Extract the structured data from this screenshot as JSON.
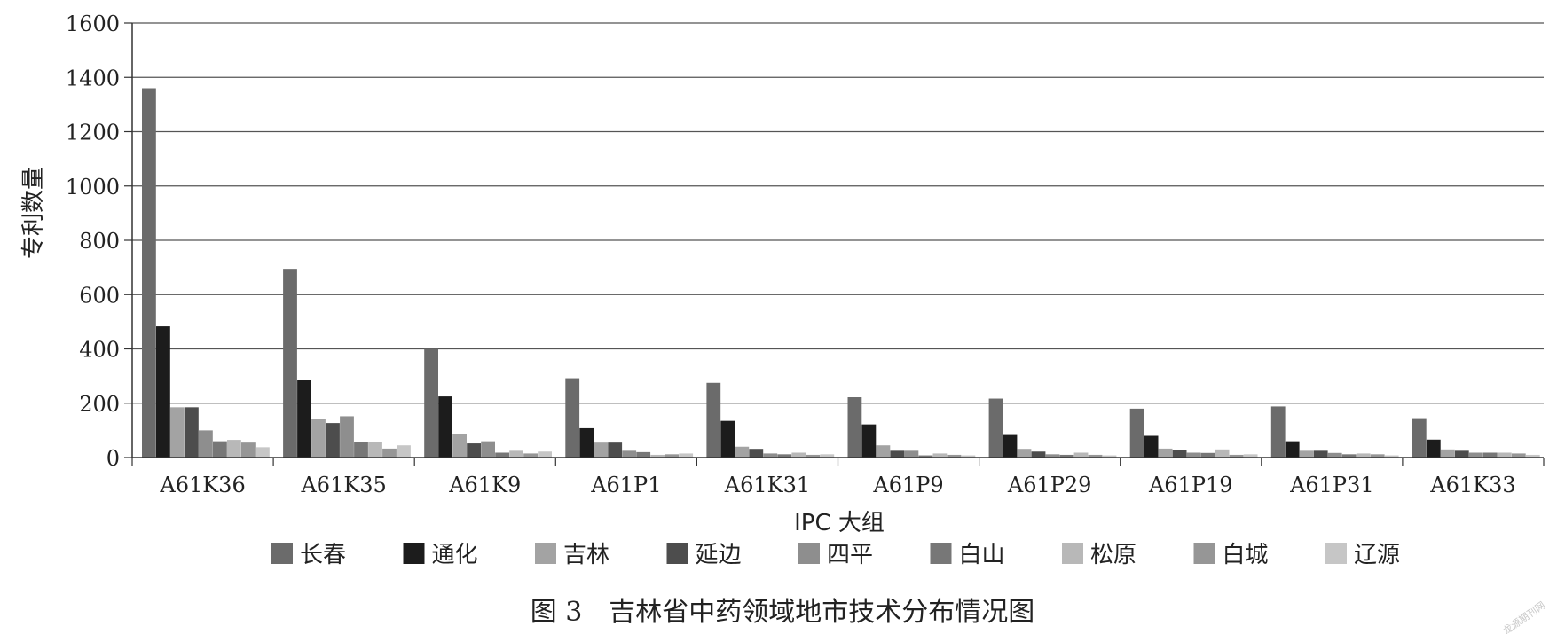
{
  "chart_data": {
    "type": "bar",
    "title": "",
    "xlabel": "IPC 大组",
    "ylabel": "专利数量",
    "ylim": [
      0,
      1600
    ],
    "yticks": [
      0,
      200,
      400,
      600,
      800,
      1000,
      1200,
      1400,
      1600
    ],
    "grid": true,
    "legend_position": "bottom",
    "categories": [
      "A61K36",
      "A61K35",
      "A61K9",
      "A61P1",
      "A61K31",
      "A61P9",
      "A61P29",
      "A61P19",
      "A61P31",
      "A61K33"
    ],
    "series": [
      {
        "name": "长春",
        "color": "#6b6b6b",
        "values": [
          1360,
          695,
          400,
          292,
          275,
          222,
          217,
          180,
          188,
          145
        ]
      },
      {
        "name": "通化",
        "color": "#1c1c1c",
        "values": [
          483,
          287,
          225,
          108,
          135,
          122,
          83,
          80,
          60,
          66
        ]
      },
      {
        "name": "吉林",
        "color": "#a3a3a3",
        "values": [
          185,
          142,
          85,
          55,
          40,
          45,
          32,
          33,
          25,
          30
        ]
      },
      {
        "name": "延边",
        "color": "#4d4d4d",
        "values": [
          185,
          127,
          52,
          55,
          32,
          25,
          22,
          28,
          25,
          25
        ]
      },
      {
        "name": "四平",
        "color": "#8e8e8e",
        "values": [
          100,
          152,
          60,
          25,
          15,
          25,
          12,
          18,
          17,
          18
        ]
      },
      {
        "name": "白山",
        "color": "#777777",
        "values": [
          60,
          57,
          18,
          20,
          12,
          8,
          10,
          17,
          12,
          18
        ]
      },
      {
        "name": "松原",
        "color": "#b8b8b8",
        "values": [
          65,
          58,
          25,
          10,
          18,
          15,
          18,
          30,
          15,
          18
        ]
      },
      {
        "name": "白城",
        "color": "#969696",
        "values": [
          55,
          33,
          15,
          12,
          10,
          10,
          10,
          10,
          12,
          15
        ]
      },
      {
        "name": "辽源",
        "color": "#c6c6c6",
        "values": [
          38,
          45,
          22,
          15,
          12,
          8,
          8,
          12,
          8,
          10
        ]
      }
    ]
  },
  "caption": "图 3　吉林省中药领域地市技术分布情况图",
  "watermark": "龙源期刊网"
}
